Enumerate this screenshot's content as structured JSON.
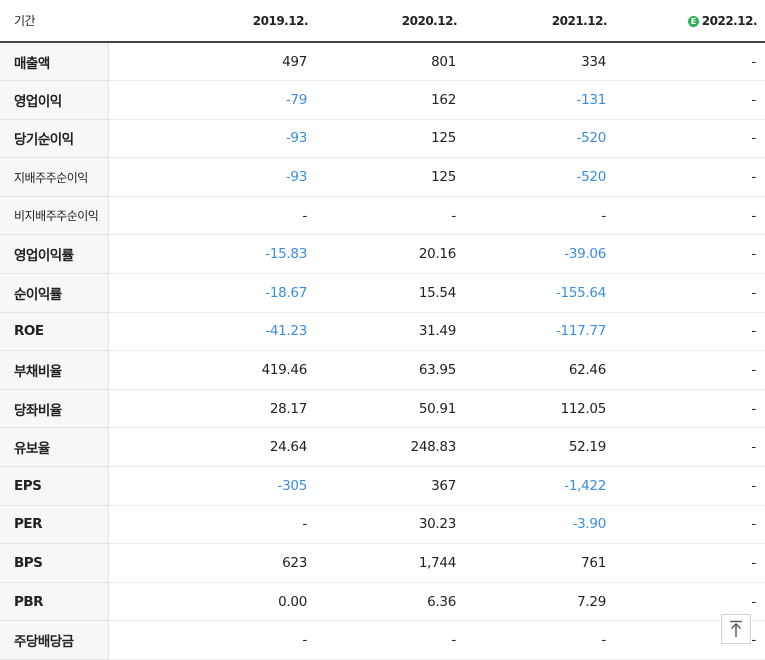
{
  "header": {
    "label": "기간",
    "periods": [
      {
        "label": "2019.12.",
        "estimate": false
      },
      {
        "label": "2020.12.",
        "estimate": false
      },
      {
        "label": "2021.12.",
        "estimate": false
      },
      {
        "label": "2022.12.",
        "estimate": true,
        "estimate_mark": "E"
      }
    ]
  },
  "rows": [
    {
      "label": "매출액",
      "values": [
        "497",
        "801",
        "334",
        "-"
      ]
    },
    {
      "label": "영업이익",
      "values": [
        "-79",
        "162",
        "-131",
        "-"
      ]
    },
    {
      "label": "당기순이익",
      "values": [
        "-93",
        "125",
        "-520",
        "-"
      ]
    },
    {
      "label": "지배주주순이익",
      "values": [
        "-93",
        "125",
        "-520",
        "-"
      ]
    },
    {
      "label": "비지배주주순이익",
      "values": [
        "-",
        "-",
        "-",
        "-"
      ]
    },
    {
      "label": "영업이익률",
      "values": [
        "-15.83",
        "20.16",
        "-39.06",
        "-"
      ]
    },
    {
      "label": "순이익률",
      "values": [
        "-18.67",
        "15.54",
        "-155.64",
        "-"
      ]
    },
    {
      "label": "ROE",
      "values": [
        "-41.23",
        "31.49",
        "-117.77",
        "-"
      ]
    },
    {
      "label": "부채비율",
      "values": [
        "419.46",
        "63.95",
        "62.46",
        "-"
      ]
    },
    {
      "label": "당좌비율",
      "values": [
        "28.17",
        "50.91",
        "112.05",
        "-"
      ]
    },
    {
      "label": "유보율",
      "values": [
        "24.64",
        "248.83",
        "52.19",
        "-"
      ]
    },
    {
      "label": "EPS",
      "values": [
        "-305",
        "367",
        "-1,422",
        "-"
      ]
    },
    {
      "label": "PER",
      "values": [
        "-",
        "30.23",
        "-3.90",
        "-"
      ]
    },
    {
      "label": "BPS",
      "values": [
        "623",
        "1,744",
        "761",
        "-"
      ]
    },
    {
      "label": "PBR",
      "values": [
        "0.00",
        "6.36",
        "7.29",
        "-"
      ]
    },
    {
      "label": "주당배당금",
      "values": [
        "-",
        "-",
        "-",
        "-"
      ]
    }
  ],
  "colors": {
    "negative": "#3a8de0",
    "positive": "#222222",
    "header_rule": "#444444"
  },
  "icons": {
    "scroll_top": "arrow-up-icon",
    "estimate": "estimate-badge-icon"
  }
}
